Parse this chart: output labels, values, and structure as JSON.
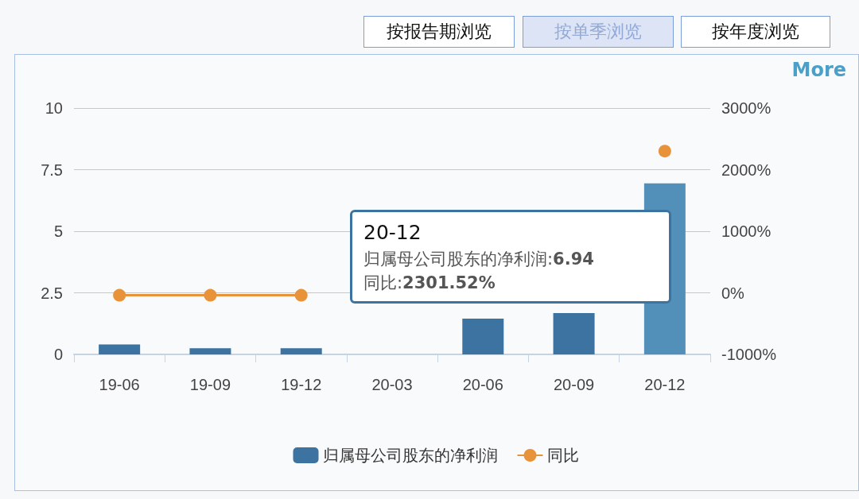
{
  "chart_data": {
    "type": "bar",
    "categories": [
      "19-06",
      "19-09",
      "19-12",
      "20-03",
      "20-06",
      "20-09",
      "20-12"
    ],
    "series": [
      {
        "name": "归属母公司股东的净利润",
        "color": "#3d73a0",
        "colors": [
          "#3d73a0",
          "#3d73a0",
          "#3d73a0",
          "#3d73a0",
          "#3d73a0",
          "#3d73a0",
          "#5390b9"
        ],
        "values": [
          0.4,
          0.25,
          0.25,
          0,
          1.45,
          1.68,
          6.94
        ]
      },
      {
        "name": "同比",
        "type": "line",
        "axis": "y2",
        "color": "#e8923a",
        "values": [
          -40,
          -40,
          -40,
          null,
          null,
          null,
          2301.52
        ]
      }
    ],
    "ylim": [
      0,
      10
    ],
    "yticks": [
      0,
      2.5,
      5,
      7.5,
      10
    ],
    "y2lim": [
      -1000,
      3000
    ],
    "y2ticks": [
      {
        "value": -1000,
        "label": "-1000%"
      },
      {
        "value": 0,
        "label": "0%"
      },
      {
        "value": 1000,
        "label": "1000%"
      },
      {
        "value": 2000,
        "label": "2000%"
      },
      {
        "value": 3000,
        "label": "3000%"
      }
    ],
    "grid": "y",
    "legend": "bottom",
    "marker": "circle",
    "line_style": "solid",
    "annotations": [
      "按报告期浏览",
      "按单季浏览",
      "按年度浏览",
      "More",
      "20-12",
      "归属母公司股东的净利润:6.94",
      "同比:2301.52%"
    ]
  }
}
